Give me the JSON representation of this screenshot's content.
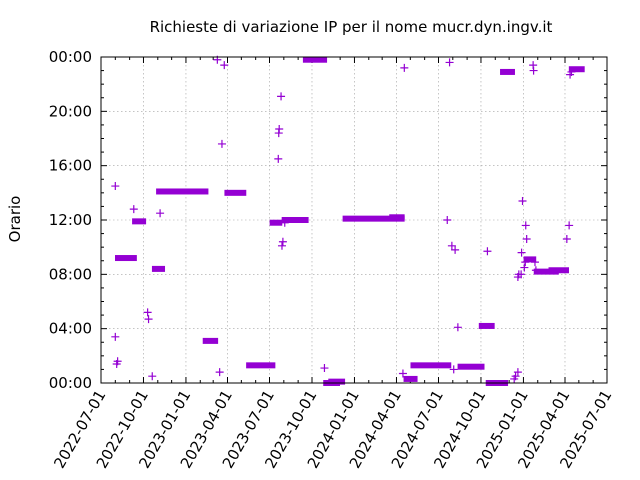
{
  "chart_data": {
    "type": "scatter",
    "title": "Richieste di variazione IP per il nome mucr.dyn.ingv.it",
    "xlabel": "",
    "ylabel": "Orario",
    "x_tick_labels": [
      "2022-07-01",
      "2022-10-01",
      "2023-01-01",
      "2023-04-01",
      "2023-07-01",
      "2023-10-01",
      "2024-01-01",
      "2024-04-01",
      "2024-07-01",
      "2024-10-01",
      "2025-01-01",
      "2025-04-01",
      "2025-07-01"
    ],
    "y_tick_labels": [
      "00:00",
      "04:00",
      "08:00",
      "12:00",
      "16:00",
      "20:00",
      "00:00"
    ],
    "xlim": [
      "2022-07-01",
      "2025-07-01"
    ],
    "ylim": [
      0,
      24
    ],
    "grid": true,
    "color": "#9400d3",
    "points": [
      {
        "date": "2022-08-01",
        "hour": 14.5
      },
      {
        "date": "2022-08-01",
        "hour": 3.4
      },
      {
        "date": "2022-08-04",
        "hour": 1.4
      },
      {
        "date": "2022-08-06",
        "hour": 1.6
      },
      {
        "date": "2022-08-09",
        "hour": 9.2,
        "end": "2022-09-08"
      },
      {
        "date": "2022-09-10",
        "hour": 12.8
      },
      {
        "date": "2022-09-15",
        "hour": 11.9,
        "end": "2022-09-28"
      },
      {
        "date": "2022-10-10",
        "hour": 5.2
      },
      {
        "date": "2022-10-12",
        "hour": 4.7
      },
      {
        "date": "2022-10-20",
        "hour": 0.5
      },
      {
        "date": "2022-10-28",
        "hour": 8.4,
        "end": "2022-11-08"
      },
      {
        "date": "2022-11-06",
        "hour": 12.5
      },
      {
        "date": "2022-11-06",
        "hour": 14.1,
        "end": "2023-02-10"
      },
      {
        "date": "2023-02-15",
        "hour": 3.1,
        "end": "2023-03-03"
      },
      {
        "date": "2023-03-10",
        "hour": 23.8
      },
      {
        "date": "2023-03-15",
        "hour": 0.8
      },
      {
        "date": "2023-03-20",
        "hour": 17.6
      },
      {
        "date": "2023-03-25",
        "hour": 23.4
      },
      {
        "date": "2023-04-03",
        "hour": 14.0,
        "end": "2023-05-03"
      },
      {
        "date": "2023-05-20",
        "hour": 1.3,
        "end": "2023-07-05"
      },
      {
        "date": "2023-07-10",
        "hour": 11.8,
        "end": "2023-07-20"
      },
      {
        "date": "2023-07-20",
        "hour": 16.5
      },
      {
        "date": "2023-07-21",
        "hour": 18.4
      },
      {
        "date": "2023-07-22",
        "hour": 18.7
      },
      {
        "date": "2023-07-26",
        "hour": 21.1
      },
      {
        "date": "2023-07-28",
        "hour": 10.1
      },
      {
        "date": "2023-07-30",
        "hour": 10.4
      },
      {
        "date": "2023-08-03",
        "hour": 11.8
      },
      {
        "date": "2023-08-05",
        "hour": 12.0,
        "end": "2023-09-15"
      },
      {
        "date": "2023-09-20",
        "hour": 23.8,
        "end": "2023-10-25"
      },
      {
        "date": "2023-10-28",
        "hour": 1.1
      },
      {
        "date": "2023-11-03",
        "hour": 0.0,
        "end": "2023-11-22"
      },
      {
        "date": "2023-11-14",
        "hour": 0.1,
        "end": "2023-12-03"
      },
      {
        "date": "2023-12-15",
        "hour": 12.1,
        "end": "2024-04-10"
      },
      {
        "date": "2024-03-25",
        "hour": 12.2,
        "end": "2024-04-10"
      },
      {
        "date": "2024-04-15",
        "hour": 0.7
      },
      {
        "date": "2024-04-18",
        "hour": 23.2
      },
      {
        "date": "2024-04-25",
        "hour": 0.3,
        "end": "2024-05-08"
      },
      {
        "date": "2024-05-10",
        "hour": 1.3,
        "end": "2024-07-20"
      },
      {
        "date": "2024-07-20",
        "hour": 12.0
      },
      {
        "date": "2024-07-25",
        "hour": 23.6
      },
      {
        "date": "2024-07-30",
        "hour": 10.1
      },
      {
        "date": "2024-08-03",
        "hour": 1.0
      },
      {
        "date": "2024-08-06",
        "hour": 9.8
      },
      {
        "date": "2024-08-12",
        "hour": 4.1
      },
      {
        "date": "2024-08-20",
        "hour": 1.2,
        "end": "2024-09-30"
      },
      {
        "date": "2024-10-05",
        "hour": 4.2,
        "end": "2024-10-22"
      },
      {
        "date": "2024-10-15",
        "hour": 9.7
      },
      {
        "date": "2024-10-20",
        "hour": 0.0,
        "end": "2024-11-20"
      },
      {
        "date": "2024-11-20",
        "hour": 22.9,
        "end": "2024-12-05"
      },
      {
        "date": "2024-12-12",
        "hour": 0.3
      },
      {
        "date": "2024-12-15",
        "hour": 0.5
      },
      {
        "date": "2024-12-20",
        "hour": 0.8
      },
      {
        "date": "2024-12-20",
        "hour": 7.8
      },
      {
        "date": "2024-12-22",
        "hour": 8.0
      },
      {
        "date": "2024-12-27",
        "hour": 8.0
      },
      {
        "date": "2024-12-28",
        "hour": 9.6
      },
      {
        "date": "2024-12-30",
        "hour": 13.4
      },
      {
        "date": "2025-01-03",
        "hour": 8.5
      },
      {
        "date": "2025-01-05",
        "hour": 8.9
      },
      {
        "date": "2025-01-06",
        "hour": 11.6
      },
      {
        "date": "2025-01-08",
        "hour": 10.6
      },
      {
        "date": "2025-01-10",
        "hour": 9.1,
        "end": "2025-01-20"
      },
      {
        "date": "2025-01-22",
        "hour": 23.4
      },
      {
        "date": "2025-01-23",
        "hour": 23.0
      },
      {
        "date": "2025-01-26",
        "hour": 8.9
      },
      {
        "date": "2025-01-28",
        "hour": 8.3
      },
      {
        "date": "2025-02-01",
        "hour": 8.2,
        "end": "2025-03-10"
      },
      {
        "date": "2025-03-05",
        "hour": 8.3,
        "end": "2025-04-01"
      },
      {
        "date": "2025-04-05",
        "hour": 10.6
      },
      {
        "date": "2025-04-10",
        "hour": 11.6
      },
      {
        "date": "2025-04-12",
        "hour": 22.7
      },
      {
        "date": "2025-04-15",
        "hour": 22.9
      },
      {
        "date": "2025-04-18",
        "hour": 23.1,
        "end": "2025-05-05"
      }
    ]
  }
}
